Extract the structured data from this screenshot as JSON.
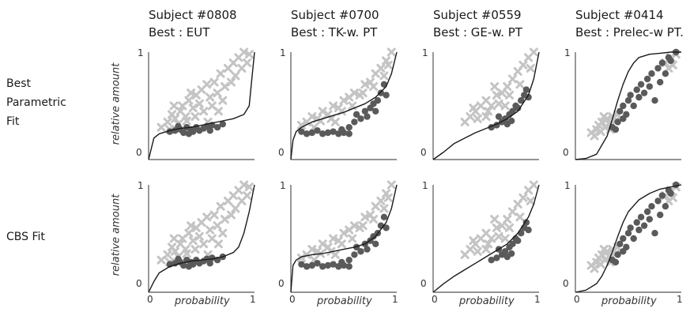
{
  "column_titles": [
    {
      "subject": "Subject #0808",
      "best": "Best : EUT"
    },
    {
      "subject": "Subject #0700",
      "best": "Best : TK-w. PT"
    },
    {
      "subject": "Subject #0559",
      "best": "Best : GE-w. PT"
    },
    {
      "subject": "Subject #0414",
      "best": "Best : Prelec-w PT."
    }
  ],
  "row_labels": {
    "row1": [
      "Best",
      "Parametric",
      "Fit"
    ],
    "row2": "CBS Fit"
  },
  "axis": {
    "ylabel": "relative amount",
    "xlabel": "probability",
    "x_ticks": [
      "0",
      "1"
    ],
    "y_ticks": [
      "0",
      "1"
    ]
  },
  "colors": {
    "cross": "#c4c4c4",
    "dot": "#5a5a5a",
    "curve": "#1a1a1a",
    "axis": "#555555"
  },
  "chart_data": [
    {
      "type": "scatter",
      "subject": "Subject #0808",
      "row": "Best Parametric Fit",
      "xlim": [
        0,
        1
      ],
      "ylim": [
        0,
        1
      ],
      "curve_type": "eut",
      "curve": {
        "x": [
          0,
          0.05,
          0.1,
          0.2,
          0.3,
          0.4,
          0.5,
          0.6,
          0.7,
          0.8,
          0.9,
          0.95,
          0.98,
          1
        ],
        "y": [
          0,
          0.2,
          0.24,
          0.27,
          0.29,
          0.3,
          0.32,
          0.34,
          0.36,
          0.38,
          0.42,
          0.5,
          0.8,
          1
        ]
      }
    },
    {
      "type": "scatter",
      "subject": "Subject #0700",
      "row": "Best Parametric Fit",
      "xlim": [
        0,
        1
      ],
      "ylim": [
        0,
        1
      ],
      "curve_type": "tk",
      "curve": {
        "x": [
          0,
          0.02,
          0.05,
          0.1,
          0.2,
          0.3,
          0.4,
          0.5,
          0.6,
          0.7,
          0.8,
          0.9,
          0.95,
          1
        ],
        "y": [
          0,
          0.18,
          0.26,
          0.3,
          0.35,
          0.38,
          0.41,
          0.44,
          0.48,
          0.52,
          0.58,
          0.68,
          0.8,
          1
        ]
      }
    },
    {
      "type": "scatter",
      "subject": "Subject #0559",
      "row": "Best Parametric Fit",
      "xlim": [
        0,
        1
      ],
      "ylim": [
        0,
        1
      ],
      "curve_type": "ge",
      "curve": {
        "x": [
          0,
          0.1,
          0.2,
          0.3,
          0.4,
          0.5,
          0.6,
          0.7,
          0.8,
          0.9,
          0.95,
          1
        ],
        "y": [
          0,
          0.07,
          0.15,
          0.2,
          0.25,
          0.29,
          0.33,
          0.38,
          0.45,
          0.6,
          0.75,
          1
        ]
      }
    },
    {
      "type": "scatter",
      "subject": "Subject #0414",
      "row": "Best Parametric Fit",
      "xlim": [
        0,
        1
      ],
      "ylim": [
        0,
        1
      ],
      "curve_type": "prelec",
      "curve": {
        "x": [
          0,
          0.1,
          0.2,
          0.3,
          0.35,
          0.4,
          0.45,
          0.5,
          0.55,
          0.6,
          0.7,
          0.8,
          0.9,
          1
        ],
        "y": [
          0,
          0.01,
          0.05,
          0.22,
          0.38,
          0.55,
          0.7,
          0.82,
          0.9,
          0.95,
          0.98,
          0.99,
          1,
          1
        ]
      }
    },
    {
      "type": "scatter",
      "subject": "Subject #0808",
      "row": "CBS Fit",
      "xlim": [
        0,
        1
      ],
      "ylim": [
        0,
        1
      ],
      "curve_type": "eut",
      "curve": {
        "x": [
          0,
          0.05,
          0.1,
          0.2,
          0.3,
          0.4,
          0.5,
          0.6,
          0.7,
          0.8,
          0.85,
          0.9,
          0.95,
          1
        ],
        "y": [
          0,
          0.1,
          0.18,
          0.24,
          0.27,
          0.29,
          0.3,
          0.31,
          0.33,
          0.37,
          0.42,
          0.55,
          0.75,
          1
        ]
      }
    },
    {
      "type": "scatter",
      "subject": "Subject #0700",
      "row": "CBS Fit",
      "xlim": [
        0,
        1
      ],
      "ylim": [
        0,
        1
      ],
      "curve_type": "tk",
      "curve": {
        "x": [
          0,
          0.02,
          0.05,
          0.1,
          0.2,
          0.3,
          0.4,
          0.5,
          0.6,
          0.7,
          0.8,
          0.9,
          0.95,
          1
        ],
        "y": [
          0,
          0.25,
          0.3,
          0.33,
          0.35,
          0.36,
          0.38,
          0.4,
          0.42,
          0.45,
          0.52,
          0.65,
          0.78,
          1
        ]
      }
    },
    {
      "type": "scatter",
      "subject": "Subject #0559",
      "row": "CBS Fit",
      "xlim": [
        0,
        1
      ],
      "ylim": [
        0,
        1
      ],
      "curve_type": "ge",
      "curve": {
        "x": [
          0,
          0.1,
          0.2,
          0.3,
          0.4,
          0.5,
          0.6,
          0.7,
          0.8,
          0.9,
          0.95,
          1
        ],
        "y": [
          0,
          0.08,
          0.15,
          0.21,
          0.27,
          0.33,
          0.39,
          0.45,
          0.55,
          0.7,
          0.82,
          1
        ]
      }
    },
    {
      "type": "scatter",
      "subject": "Subject #0414",
      "row": "CBS Fit",
      "xlim": [
        0,
        1
      ],
      "ylim": [
        0,
        1
      ],
      "curve_type": "prelec",
      "curve": {
        "x": [
          0,
          0.1,
          0.2,
          0.25,
          0.3,
          0.35,
          0.4,
          0.45,
          0.5,
          0.6,
          0.7,
          0.8,
          0.9,
          1
        ],
        "y": [
          0,
          0.02,
          0.08,
          0.15,
          0.25,
          0.38,
          0.52,
          0.65,
          0.75,
          0.86,
          0.92,
          0.96,
          0.98,
          1
        ]
      }
    }
  ],
  "scatter_points": {
    "s0808": {
      "crosses": [
        [
          0.12,
          0.3
        ],
        [
          0.18,
          0.35
        ],
        [
          0.22,
          0.42
        ],
        [
          0.25,
          0.38
        ],
        [
          0.3,
          0.45
        ],
        [
          0.32,
          0.5
        ],
        [
          0.35,
          0.4
        ],
        [
          0.38,
          0.55
        ],
        [
          0.42,
          0.48
        ],
        [
          0.45,
          0.6
        ],
        [
          0.48,
          0.52
        ],
        [
          0.5,
          0.65
        ],
        [
          0.52,
          0.45
        ],
        [
          0.55,
          0.7
        ],
        [
          0.58,
          0.58
        ],
        [
          0.6,
          0.5
        ],
        [
          0.62,
          0.72
        ],
        [
          0.65,
          0.62
        ],
        [
          0.68,
          0.8
        ],
        [
          0.7,
          0.55
        ],
        [
          0.72,
          0.68
        ],
        [
          0.75,
          0.85
        ],
        [
          0.78,
          0.72
        ],
        [
          0.8,
          0.9
        ],
        [
          0.82,
          0.78
        ],
        [
          0.85,
          0.95
        ],
        [
          0.88,
          0.85
        ],
        [
          0.9,
          1.0
        ],
        [
          0.93,
          0.9
        ],
        [
          0.95,
          0.98
        ],
        [
          0.2,
          0.28
        ],
        [
          0.28,
          0.33
        ],
        [
          0.36,
          0.36
        ],
        [
          0.44,
          0.4
        ],
        [
          0.24,
          0.5
        ],
        [
          0.4,
          0.62
        ],
        [
          0.56,
          0.35
        ],
        [
          0.66,
          0.45
        ]
      ],
      "dots": [
        [
          0.2,
          0.26
        ],
        [
          0.25,
          0.27
        ],
        [
          0.3,
          0.28
        ],
        [
          0.33,
          0.25
        ],
        [
          0.36,
          0.3
        ],
        [
          0.4,
          0.28
        ],
        [
          0.42,
          0.26
        ],
        [
          0.45,
          0.3
        ],
        [
          0.48,
          0.27
        ],
        [
          0.52,
          0.29
        ],
        [
          0.55,
          0.31
        ],
        [
          0.58,
          0.27
        ],
        [
          0.6,
          0.32
        ],
        [
          0.65,
          0.3
        ],
        [
          0.7,
          0.33
        ],
        [
          0.28,
          0.31
        ],
        [
          0.38,
          0.24
        ]
      ]
    },
    "s0700": {
      "crosses": [
        [
          0.1,
          0.32
        ],
        [
          0.15,
          0.35
        ],
        [
          0.2,
          0.4
        ],
        [
          0.25,
          0.38
        ],
        [
          0.3,
          0.45
        ],
        [
          0.35,
          0.42
        ],
        [
          0.4,
          0.5
        ],
        [
          0.45,
          0.48
        ],
        [
          0.5,
          0.55
        ],
        [
          0.55,
          0.58
        ],
        [
          0.6,
          0.62
        ],
        [
          0.65,
          0.6
        ],
        [
          0.7,
          0.7
        ],
        [
          0.75,
          0.72
        ],
        [
          0.8,
          0.8
        ],
        [
          0.85,
          0.85
        ],
        [
          0.9,
          0.92
        ],
        [
          0.95,
          1.0
        ],
        [
          0.28,
          0.36
        ],
        [
          0.38,
          0.38
        ],
        [
          0.48,
          0.45
        ],
        [
          0.58,
          0.5
        ],
        [
          0.68,
          0.62
        ],
        [
          0.78,
          0.68
        ],
        [
          0.88,
          0.78
        ],
        [
          0.92,
          0.88
        ],
        [
          0.22,
          0.3
        ],
        [
          0.42,
          0.35
        ]
      ],
      "dots": [
        [
          0.1,
          0.26
        ],
        [
          0.15,
          0.24
        ],
        [
          0.2,
          0.25
        ],
        [
          0.25,
          0.27
        ],
        [
          0.3,
          0.24
        ],
        [
          0.35,
          0.25
        ],
        [
          0.4,
          0.26
        ],
        [
          0.45,
          0.24
        ],
        [
          0.5,
          0.25
        ],
        [
          0.55,
          0.3
        ],
        [
          0.6,
          0.35
        ],
        [
          0.62,
          0.42
        ],
        [
          0.66,
          0.38
        ],
        [
          0.7,
          0.45
        ],
        [
          0.72,
          0.4
        ],
        [
          0.75,
          0.48
        ],
        [
          0.78,
          0.52
        ],
        [
          0.82,
          0.55
        ],
        [
          0.85,
          0.62
        ],
        [
          0.88,
          0.7
        ],
        [
          0.9,
          0.6
        ],
        [
          0.55,
          0.24
        ],
        [
          0.48,
          0.28
        ],
        [
          0.8,
          0.45
        ]
      ]
    },
    "s0559": {
      "crosses": [
        [
          0.3,
          0.35
        ],
        [
          0.35,
          0.4
        ],
        [
          0.4,
          0.45
        ],
        [
          0.45,
          0.5
        ],
        [
          0.5,
          0.55
        ],
        [
          0.55,
          0.5
        ],
        [
          0.6,
          0.6
        ],
        [
          0.65,
          0.62
        ],
        [
          0.7,
          0.68
        ],
        [
          0.75,
          0.75
        ],
        [
          0.8,
          0.82
        ],
        [
          0.85,
          0.88
        ],
        [
          0.9,
          0.95
        ],
        [
          0.95,
          1.0
        ],
        [
          0.42,
          0.38
        ],
        [
          0.52,
          0.45
        ],
        [
          0.62,
          0.52
        ],
        [
          0.72,
          0.6
        ],
        [
          0.82,
          0.7
        ],
        [
          0.92,
          0.85
        ],
        [
          0.5,
          0.4
        ],
        [
          0.68,
          0.5
        ],
        [
          0.38,
          0.48
        ],
        [
          0.58,
          0.68
        ]
      ],
      "dots": [
        [
          0.55,
          0.3
        ],
        [
          0.6,
          0.32
        ],
        [
          0.65,
          0.35
        ],
        [
          0.68,
          0.38
        ],
        [
          0.7,
          0.33
        ],
        [
          0.72,
          0.42
        ],
        [
          0.75,
          0.45
        ],
        [
          0.78,
          0.5
        ],
        [
          0.8,
          0.48
        ],
        [
          0.83,
          0.55
        ],
        [
          0.86,
          0.6
        ],
        [
          0.88,
          0.65
        ],
        [
          0.9,
          0.58
        ],
        [
          0.62,
          0.4
        ],
        [
          0.74,
          0.36
        ]
      ]
    },
    "s0414": {
      "crosses": [
        [
          0.15,
          0.25
        ],
        [
          0.2,
          0.28
        ],
        [
          0.22,
          0.32
        ],
        [
          0.25,
          0.35
        ],
        [
          0.28,
          0.3
        ],
        [
          0.3,
          0.38
        ],
        [
          0.32,
          0.33
        ],
        [
          0.35,
          0.4
        ],
        [
          0.38,
          0.36
        ],
        [
          0.4,
          0.42
        ],
        [
          0.18,
          0.22
        ],
        [
          0.24,
          0.26
        ],
        [
          0.27,
          0.4
        ],
        [
          0.33,
          0.28
        ],
        [
          0.85,
          0.9
        ],
        [
          0.9,
          0.95
        ],
        [
          0.95,
          0.98
        ],
        [
          0.88,
          0.85
        ],
        [
          0.92,
          0.88
        ]
      ],
      "dots": [
        [
          0.35,
          0.3
        ],
        [
          0.4,
          0.35
        ],
        [
          0.42,
          0.45
        ],
        [
          0.45,
          0.5
        ],
        [
          0.48,
          0.42
        ],
        [
          0.5,
          0.55
        ],
        [
          0.52,
          0.6
        ],
        [
          0.55,
          0.5
        ],
        [
          0.58,
          0.65
        ],
        [
          0.6,
          0.58
        ],
        [
          0.62,
          0.7
        ],
        [
          0.65,
          0.62
        ],
        [
          0.68,
          0.75
        ],
        [
          0.7,
          0.68
        ],
        [
          0.72,
          0.8
        ],
        [
          0.75,
          0.55
        ],
        [
          0.78,
          0.85
        ],
        [
          0.8,
          0.72
        ],
        [
          0.82,
          0.9
        ],
        [
          0.85,
          0.8
        ],
        [
          0.88,
          0.95
        ],
        [
          0.9,
          0.92
        ],
        [
          0.95,
          1.0
        ],
        [
          0.45,
          0.38
        ],
        [
          0.38,
          0.28
        ]
      ]
    }
  }
}
